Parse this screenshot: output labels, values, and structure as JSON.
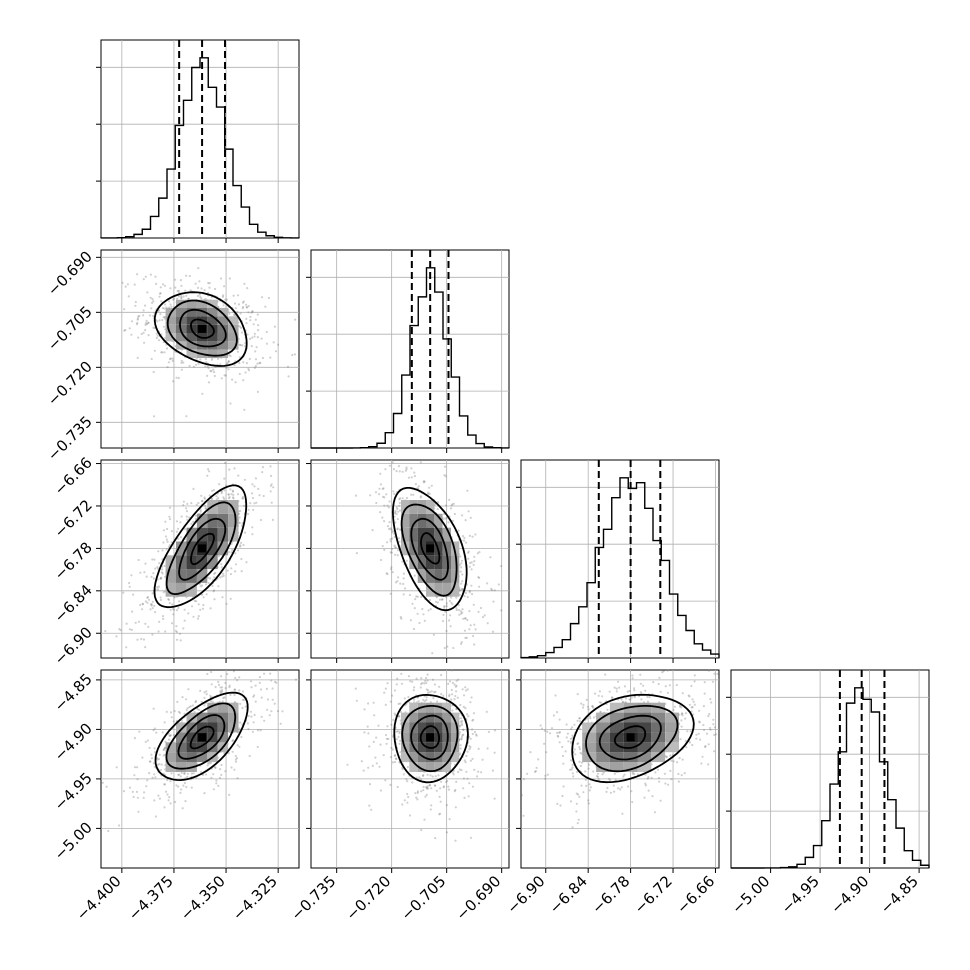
{
  "chart_data": {
    "type": "corner",
    "parameters": [
      {
        "range": [
          -4.41,
          -4.315
        ],
        "median": -4.3615,
        "q16": -4.3725,
        "q84": -4.3505,
        "ticks": [
          -4.4,
          -4.375,
          -4.35,
          -4.325
        ],
        "tick_labels": [
          "−4.400",
          "−4.375",
          "−4.350",
          "−4.325"
        ]
      },
      {
        "range": [
          -0.742,
          -0.688
        ],
        "median": -0.7095,
        "q16": -0.7145,
        "q84": -0.7045,
        "ticks": [
          -0.735,
          -0.72,
          -0.705,
          -0.69
        ],
        "tick_labels": [
          "−0.735",
          "−0.720",
          "−0.705",
          "−0.690"
        ]
      },
      {
        "range": [
          -6.935,
          -6.655
        ],
        "median": -6.78,
        "q16": -6.825,
        "q84": -6.738,
        "ticks": [
          -6.9,
          -6.84,
          -6.78,
          -6.72,
          -6.66
        ],
        "tick_labels": [
          "−6.90",
          "−6.84",
          "−6.78",
          "−6.72",
          "−6.66"
        ]
      },
      {
        "range": [
          -5.04,
          -4.84
        ],
        "median": -4.908,
        "q16": -4.93,
        "q84": -4.885,
        "ticks": [
          -5.0,
          -4.95,
          -4.9,
          -4.85
        ],
        "tick_labels": [
          "−5.00",
          "−4.95",
          "−4.90",
          "−4.85"
        ]
      }
    ],
    "correlations": [
      [
        1,
        -0.3,
        0.7,
        0.6
      ],
      [
        -0.3,
        1,
        -0.5,
        0.0
      ],
      [
        0.7,
        -0.5,
        1,
        0.3
      ],
      [
        0.6,
        0.0,
        0.3,
        1
      ]
    ],
    "sigmas": [
      0.011,
      0.005,
      0.043,
      0.022
    ],
    "contour_levels_sigma": [
      0.5,
      1.0,
      1.5,
      2.0
    ],
    "grid": true,
    "quantile_lines": "dashed"
  }
}
